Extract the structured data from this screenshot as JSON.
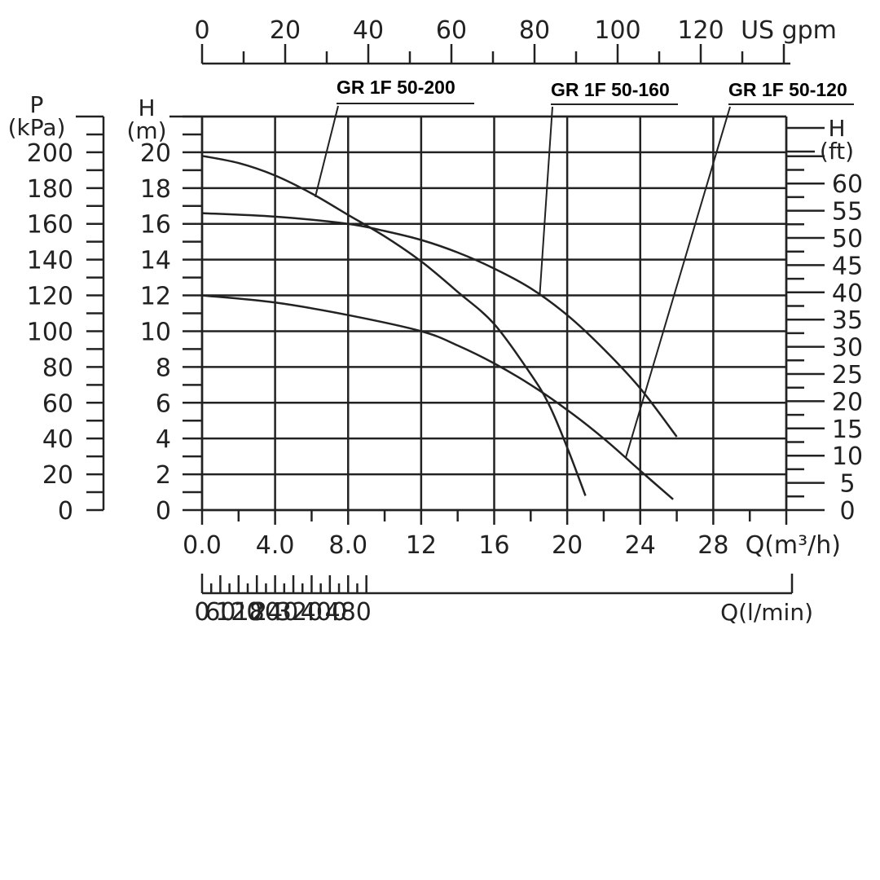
{
  "chart_data": {
    "type": "line",
    "axes": {
      "q_m3h": {
        "label": "Q(m³/h)",
        "ticks": [
          "0.0",
          "4.0",
          "8.0",
          "12",
          "16",
          "20",
          "24",
          "28"
        ],
        "range": [
          0,
          32
        ]
      },
      "q_gpm": {
        "label": "US gpm",
        "ticks": [
          "0",
          "20",
          "40",
          "60",
          "80",
          "100",
          "120"
        ]
      },
      "q_lmin": {
        "label": "Q(l/min)",
        "ticks": [
          "0",
          "60",
          "120",
          "180",
          "240",
          "320",
          "400",
          "480"
        ]
      },
      "h_m": {
        "label_top": "H",
        "label_bottom": "(m)",
        "ticks": [
          "0",
          "2",
          "4",
          "6",
          "8",
          "10",
          "12",
          "14",
          "16",
          "18",
          "20"
        ],
        "range": [
          0,
          22
        ]
      },
      "p_kpa": {
        "label_top": "P",
        "label_bottom": "(kPa)",
        "ticks": [
          "0",
          "20",
          "40",
          "60",
          "80",
          "100",
          "120",
          "140",
          "160",
          "180",
          "200"
        ]
      },
      "h_ft": {
        "label_top": "H",
        "label_bottom": "(ft)",
        "ticks": [
          "0",
          "5",
          "10",
          "15",
          "20",
          "25",
          "30",
          "35",
          "40",
          "45",
          "50",
          "55",
          "60"
        ]
      }
    },
    "series": [
      {
        "name": "GR 1F 50-200",
        "x": [
          0,
          2,
          4,
          6,
          8,
          10,
          12,
          14,
          16,
          18,
          19,
          20,
          21
        ],
        "y": [
          19.8,
          19.4,
          18.7,
          17.7,
          16.5,
          15.3,
          13.9,
          12.2,
          10.4,
          7.6,
          5.9,
          3.5,
          0.8
        ]
      },
      {
        "name": "GR 1F 50-160",
        "x": [
          0,
          4,
          8,
          10,
          12,
          14,
          16,
          18,
          20,
          22,
          24,
          26
        ],
        "y": [
          16.6,
          16.4,
          16.0,
          15.6,
          15.1,
          14.4,
          13.5,
          12.4,
          10.9,
          9.0,
          6.8,
          4.1
        ]
      },
      {
        "name": "GR 1F 50-120",
        "x": [
          0,
          4,
          8,
          12,
          14,
          16,
          18,
          20,
          22,
          24,
          25.8
        ],
        "y": [
          12.0,
          11.6,
          10.9,
          10.0,
          9.2,
          8.2,
          7.0,
          5.6,
          4.0,
          2.2,
          0.6
        ]
      }
    ]
  }
}
